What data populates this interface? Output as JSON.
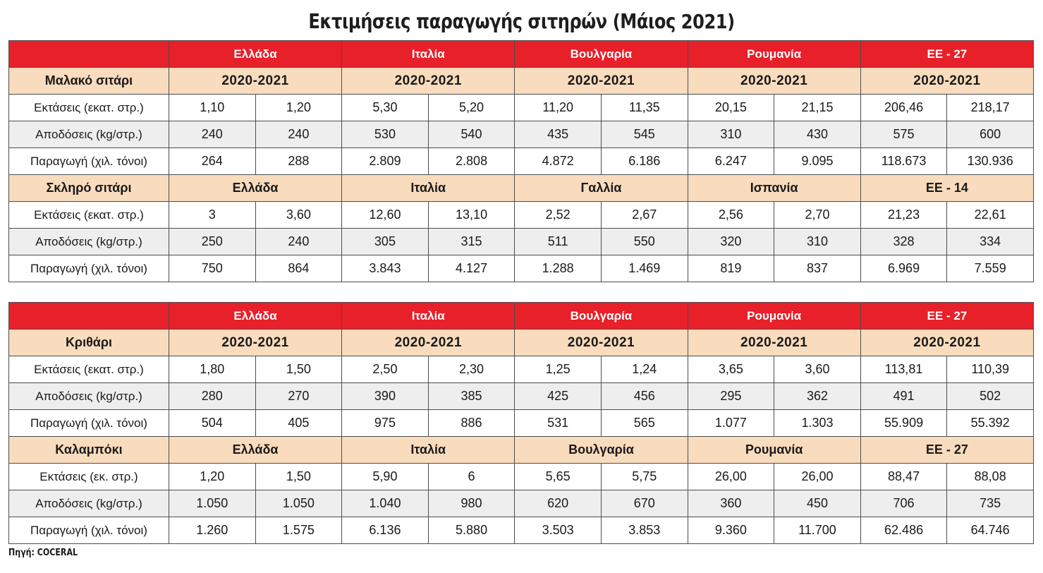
{
  "title": "Εκτιμήσεις παραγωγής σιτηρών (Μάιος 2021)",
  "source": "Πηγή: COCERAL",
  "tables": [
    {
      "countries": [
        "Ελλάδα",
        "Ιταλία",
        "Βουλγαρία",
        "Ρουμανία",
        "ΕΕ - 27"
      ],
      "sections": [
        {
          "crop": "Μαλακό σιτάρι",
          "subheaders": [
            "2020-2021",
            "2020-2021",
            "2020-2021",
            "2020-2021",
            "2020-2021"
          ],
          "rows": [
            {
              "label": "Εκτάσεις (εκατ. στρ.)",
              "values": [
                "1,10",
                "1,20",
                "5,30",
                "5,20",
                "11,20",
                "11,35",
                "20,15",
                "21,15",
                "206,46",
                "218,17"
              ]
            },
            {
              "label": "Αποδόσεις (kg/στρ.)",
              "values": [
                "240",
                "240",
                "530",
                "540",
                "435",
                "545",
                "310",
                "430",
                "575",
                "600"
              ]
            },
            {
              "label": "Παραγωγή (χιλ. τόνοι)",
              "values": [
                "264",
                "288",
                "2.809",
                "2.808",
                "4.872",
                "6.186",
                "6.247",
                "9.095",
                "118.673",
                "130.936"
              ]
            }
          ]
        },
        {
          "crop": "Σκληρό σιτάρι",
          "subheaders": [
            "Ελλάδα",
            "Ιταλία",
            "Γαλλία",
            "Ισπανία",
            "ΕΕ - 14"
          ],
          "rows": [
            {
              "label": "Εκτάσεις (εκατ. στρ.)",
              "values": [
                "3",
                "3,60",
                "12,60",
                "13,10",
                "2,52",
                "2,67",
                "2,56",
                "2,70",
                "21,23",
                "22,61"
              ]
            },
            {
              "label": "Αποδόσεις (kg/στρ.)",
              "values": [
                "250",
                "240",
                "305",
                "315",
                "511",
                "550",
                "320",
                "310",
                "328",
                "334"
              ]
            },
            {
              "label": "Παραγωγή (χιλ. τόνοι)",
              "values": [
                "750",
                "864",
                "3.843",
                "4.127",
                "1.288",
                "1.469",
                "819",
                "837",
                "6.969",
                "7.559"
              ]
            }
          ]
        }
      ]
    },
    {
      "countries": [
        "Ελλάδα",
        "Ιταλία",
        "Βουλγαρία",
        "Ρουμανία",
        "ΕΕ - 27"
      ],
      "sections": [
        {
          "crop": "Κριθάρι",
          "subheaders": [
            "2020-2021",
            "2020-2021",
            "2020-2021",
            "2020-2021",
            "2020-2021"
          ],
          "rows": [
            {
              "label": "Εκτάσεις (εκατ. στρ.)",
              "values": [
                "1,80",
                "1,50",
                "2,50",
                "2,30",
                "1,25",
                "1,24",
                "3,65",
                "3,60",
                "113,81",
                "110,39"
              ]
            },
            {
              "label": "Αποδόσεις (kg/στρ.)",
              "values": [
                "280",
                "270",
                "390",
                "385",
                "425",
                "456",
                "295",
                "362",
                "491",
                "502"
              ]
            },
            {
              "label": "Παραγωγή (χιλ. τόνοι)",
              "values": [
                "504",
                "405",
                "975",
                "886",
                "531",
                "565",
                "1.077",
                "1.303",
                "55.909",
                "55.392"
              ]
            }
          ]
        },
        {
          "crop": "Καλαμπόκι",
          "subheaders": [
            "Ελλάδα",
            "Ιταλία",
            "Βουλγαρία",
            "Ρουμανία",
            "ΕΕ - 27"
          ],
          "rows": [
            {
              "label": "Εκτάσεις (εκ. στρ.)",
              "values": [
                "1,20",
                "1,50",
                "5,90",
                "6",
                "5,65",
                "5,75",
                "26,00",
                "26,00",
                "88,47",
                "88,08"
              ]
            },
            {
              "label": "Αποδόσεις (kg/στρ.)",
              "values": [
                "1.050",
                "1.050",
                "1.040",
                "980",
                "620",
                "670",
                "360",
                "450",
                "706",
                "735"
              ]
            },
            {
              "label": "Παραγωγή (χιλ. τόνοι)",
              "values": [
                "1.260",
                "1.575",
                "6.136",
                "5.880",
                "3.503",
                "3.853",
                "9.360",
                "11.700",
                "62.486",
                "64.746"
              ]
            }
          ]
        }
      ]
    }
  ]
}
